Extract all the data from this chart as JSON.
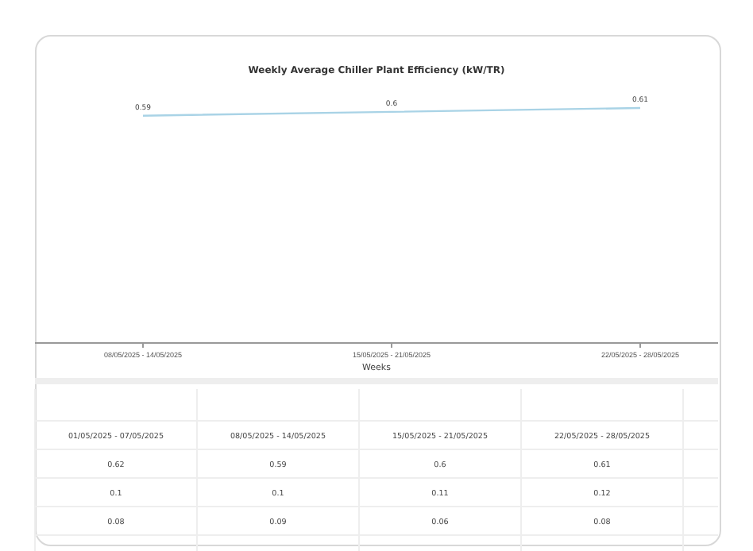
{
  "chart_data": [
    {
      "type": "line",
      "title": "Weekly Average Chiller Plant Efficiency (kW/TR)",
      "xlabel": "Weeks",
      "categories": [
        "08/05/2025 - 14/05/2025",
        "15/05/2025 - 21/05/2025",
        "22/05/2025 - 28/05/2025"
      ],
      "series": [
        {
          "color": "#a9d3e6",
          "values": [
            0.59,
            0.6,
            0.61
          ],
          "value_labels": [
            "0.59",
            "0.6",
            "0.61"
          ]
        }
      ],
      "marker": "none"
    },
    {
      "type": "other",
      "categories": [
        "01/05/2025 - 07/05/2025",
        "08/05/2025 - 14/05/2025",
        "15/05/2025 - 21/05/2025",
        "22/05/2025 - 28/05/2025"
      ],
      "annotations": [
        "0.62",
        "0.59",
        "0.6",
        "0.61",
        "0.1",
        "0.1",
        "0.11",
        "0.12",
        "0.08",
        "0.09",
        "0.06",
        "0.08"
      ]
    }
  ]
}
